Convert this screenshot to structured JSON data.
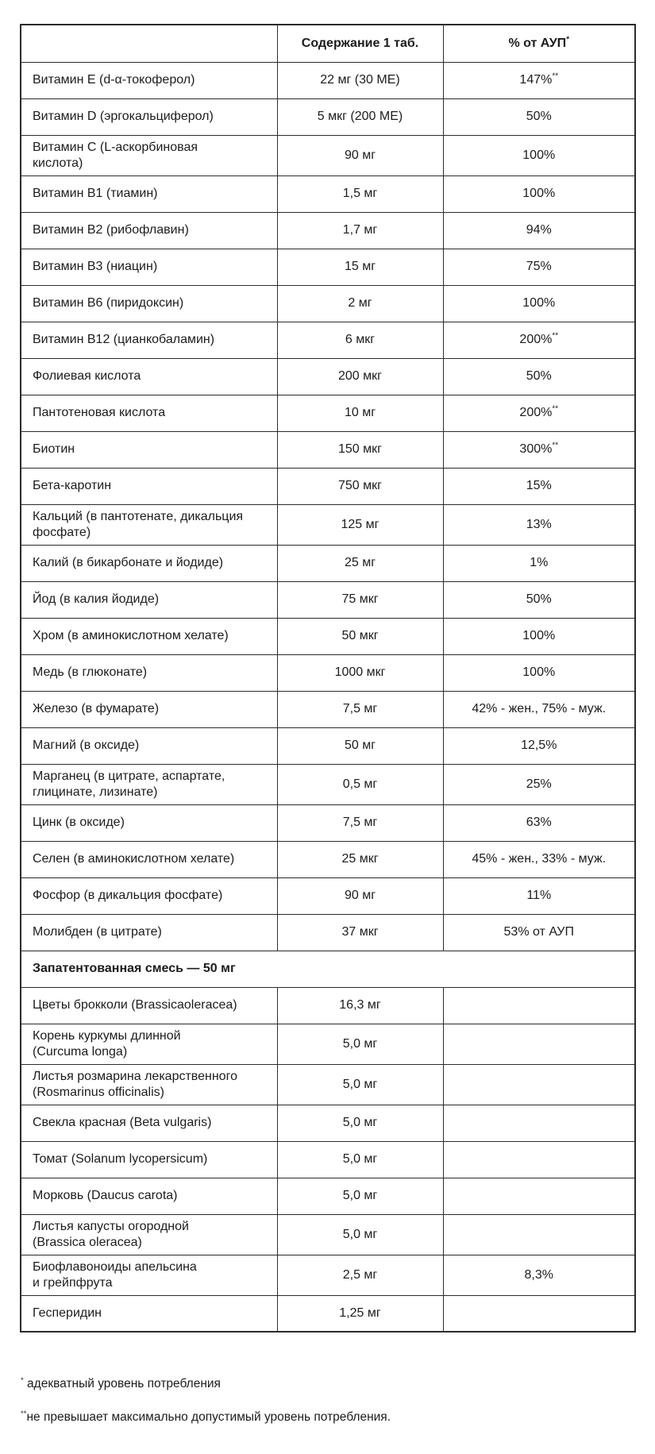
{
  "colors": {
    "background": "#ffffff",
    "border": "#2b2b2b",
    "text": "#1c1c1c"
  },
  "header": {
    "col1": "",
    "col2": "Содержание 1 таб.",
    "col3": "% от АУП",
    "col3_mark": "*"
  },
  "rows": [
    {
      "name": "Витамин E (d-α-токоферол)",
      "amount": "22 мг (30 МЕ)",
      "percent": "147%",
      "mark": "**"
    },
    {
      "name": "Витамин D (эргокальциферол)",
      "amount": "5 мкг (200 МЕ)",
      "percent": "50%"
    },
    {
      "name": "Витамин C (L-аскорбиновая\nкислота)",
      "amount": "90 мг",
      "percent": "100%"
    },
    {
      "name": "Витамин B1 (тиамин)",
      "amount": "1,5 мг",
      "percent": "100%"
    },
    {
      "name": "Витамин B2 (рибофлавин)",
      "amount": "1,7 мг",
      "percent": "94%"
    },
    {
      "name": "Витамин B3 (ниацин)",
      "amount": "15 мг",
      "percent": "75%"
    },
    {
      "name": "Витамин B6 (пиридоксин)",
      "amount": "2 мг",
      "percent": "100%"
    },
    {
      "name": "Витамин B12 (цианкобаламин)",
      "amount": "6 мкг",
      "percent": "200%",
      "mark": "**"
    },
    {
      "name": "Фолиевая кислота",
      "amount": "200 мкг",
      "percent": "50%"
    },
    {
      "name": "Пантотеновая кислота",
      "amount": "10 мг",
      "percent": "200%",
      "mark": "**"
    },
    {
      "name": "Биотин",
      "amount": "150 мкг",
      "percent": "300%",
      "mark": "**"
    },
    {
      "name": "Бета-каротин",
      "amount": "750 мкг",
      "percent": "15%"
    },
    {
      "name": "Кальций (в пантотенате, дикальция\nфосфате)",
      "amount": "125 мг",
      "percent": "13%"
    },
    {
      "name": "Калий (в бикарбонате и йодиде)",
      "amount": "25 мг",
      "percent": "1%"
    },
    {
      "name": "Йод (в калия йодиде)",
      "amount": "75 мкг",
      "percent": "50%"
    },
    {
      "name": "Хром (в аминокислотном хелате)",
      "amount": "50 мкг",
      "percent": "100%"
    },
    {
      "name": "Медь (в глюконате)",
      "amount": "1000 мкг",
      "percent": "100%"
    },
    {
      "name": "Железо (в фумарате)",
      "amount": "7,5 мг",
      "percent": "42% - жен., 75% - муж."
    },
    {
      "name": "Магний (в оксиде)",
      "amount": "50 мг",
      "percent": "12,5%"
    },
    {
      "name": "Марганец (в цитрате, аспартате,\nглицинате, лизинате)",
      "amount": "0,5 мг",
      "percent": "25%"
    },
    {
      "name": "Цинк (в оксиде)",
      "amount": "7,5 мг",
      "percent": "63%"
    },
    {
      "name": "Селен (в аминокислотном хелате)",
      "amount": "25 мкг",
      "percent": "45% - жен., 33% - муж."
    },
    {
      "name": "Фосфор (в дикальция фосфате)",
      "amount": "90 мг",
      "percent": "11%"
    },
    {
      "name": "Молибден (в цитрате)",
      "amount": "37 мкг",
      "percent": "53% от АУП"
    },
    {
      "type": "section",
      "label": "Запатентованная смесь — 50 мг"
    },
    {
      "name": "Цветы брокколи (Brassicaoleracea)",
      "amount": "16,3 мг",
      "percent": ""
    },
    {
      "name": "Корень куркумы длинной\n(Curcuma longa)",
      "amount": "5,0 мг",
      "percent": ""
    },
    {
      "name": "Листья розмарина лекарственного\n(Rosmarinus officinalis)",
      "amount": "5,0 мг",
      "percent": ""
    },
    {
      "name": "Свекла красная (Beta vulgaris)",
      "amount": "5,0 мг",
      "percent": ""
    },
    {
      "name": "Томат (Solanum lycopersicum)",
      "amount": "5,0 мг",
      "percent": ""
    },
    {
      "name": "Морковь (Daucus carota)",
      "amount": "5,0 мг",
      "percent": ""
    },
    {
      "name": "Листья капусты огородной\n(Brassica oleracea)",
      "amount": "5,0 мг",
      "percent": ""
    },
    {
      "name": "Биофлавоноиды апельсина\nи грейпфрута",
      "amount": "2,5 мг",
      "percent": "8,3%"
    },
    {
      "name": "Гесперидин",
      "amount": "1,25 мг",
      "percent": ""
    }
  ],
  "footnotes": [
    {
      "mark": "*",
      "text": "адекватный уровень потребления"
    },
    {
      "mark": "**",
      "text": "не превышает максимально допустимый уровень потребления."
    }
  ]
}
